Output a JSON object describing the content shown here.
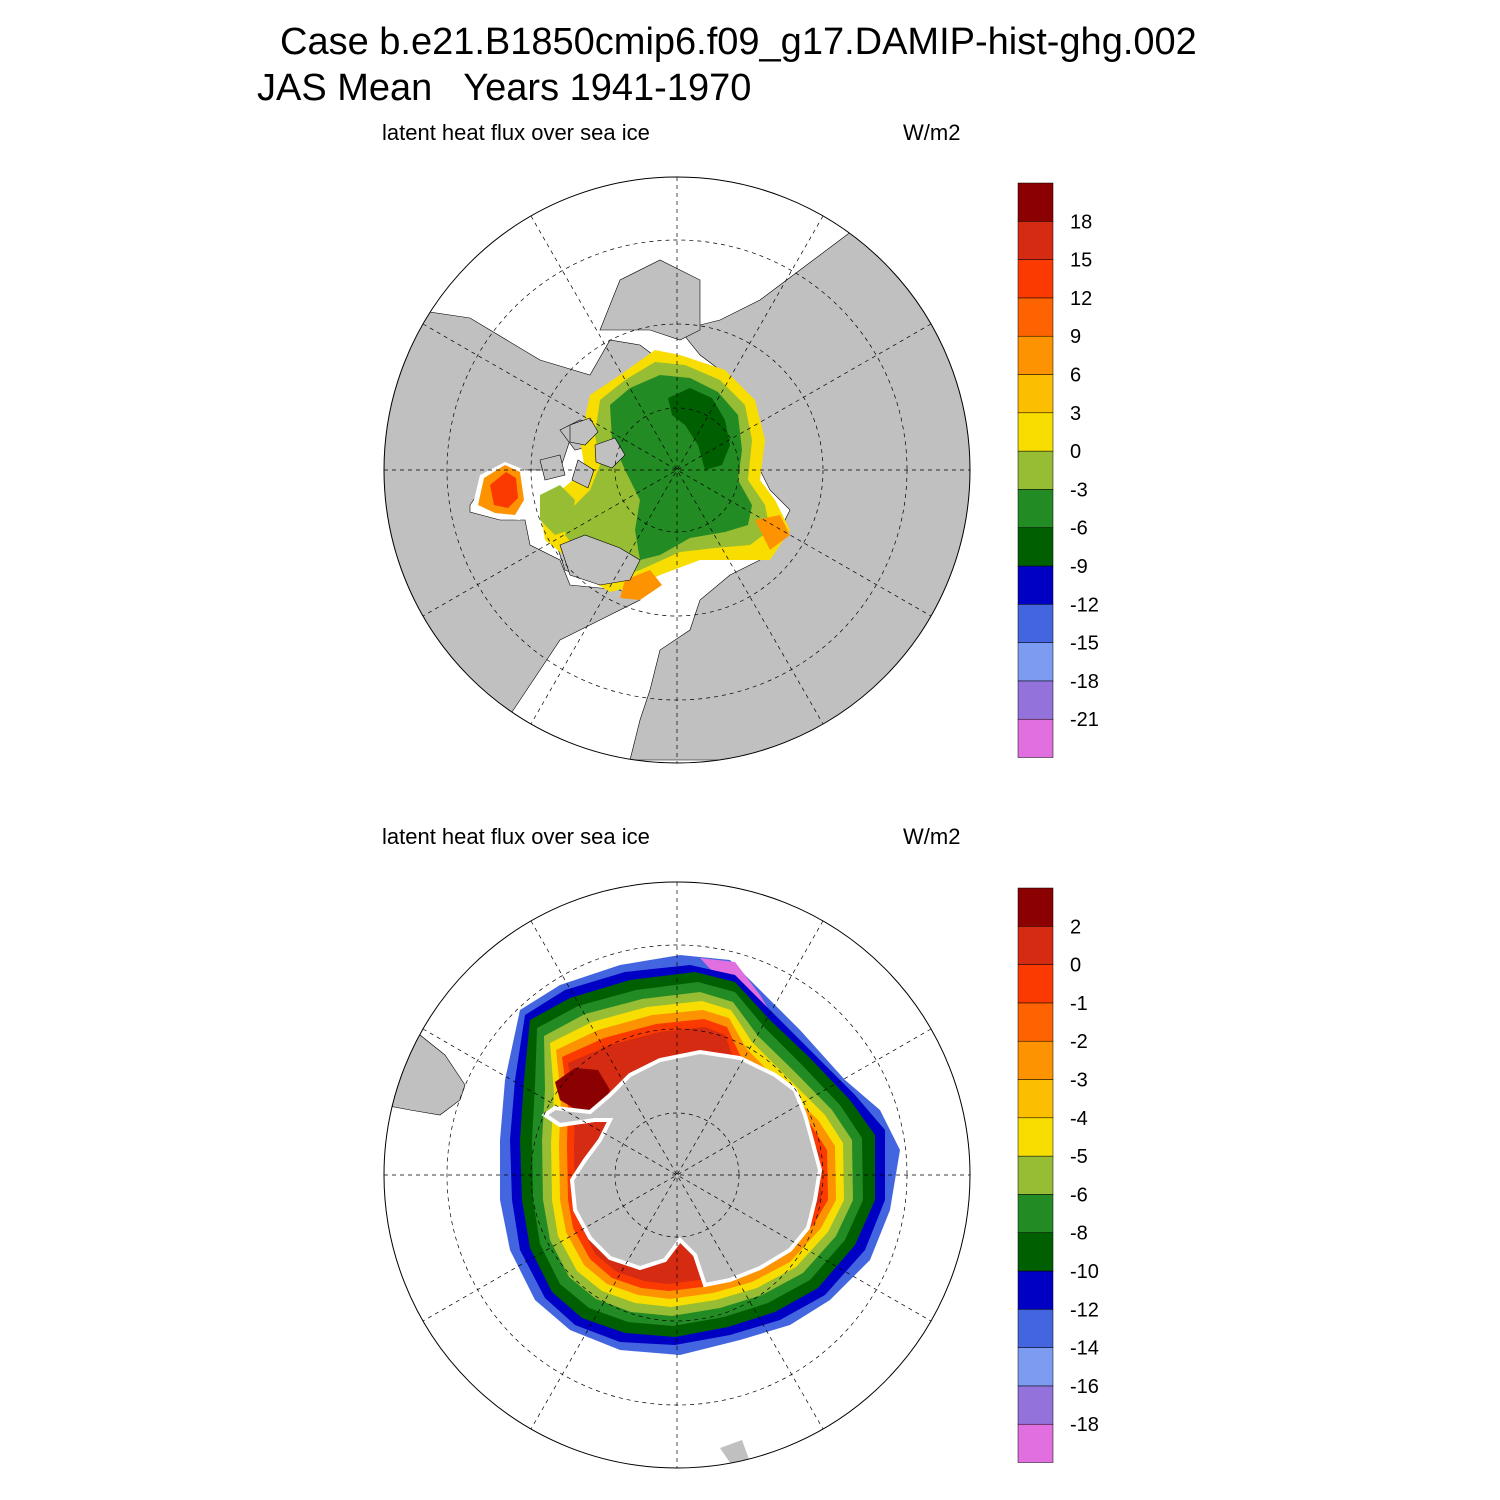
{
  "title_line1": "Case b.e21.B1850cmip6.f09_g17.DAMIP-hist-ghg.002",
  "title_line2": "JAS Mean   Years 1941-1970",
  "colors": {
    "land": "#c0c0c0",
    "ocean": "#ffffff",
    "palette": [
      "#e16fdf",
      "#9373db",
      "#7b9cf0",
      "#4366e0",
      "#0000c4",
      "#005f00",
      "#238b23",
      "#96bd33",
      "#f7de00",
      "#fbbe00",
      "#fd9300",
      "#fd6300",
      "#fa3a00",
      "#d42b12",
      "#8b0000"
    ]
  },
  "panels": [
    {
      "id": "north",
      "left_title": "latent heat flux over sea ice",
      "units": "W/m2",
      "projection": "north-polar-stereographic",
      "colorbar_labels": [
        "-21",
        "-18",
        "-15",
        "-12",
        "-9",
        "-6",
        "-3",
        "0",
        "3",
        "6",
        "9",
        "12",
        "15",
        "18"
      ]
    },
    {
      "id": "south",
      "left_title": "latent heat flux over sea ice",
      "units": "W/m2",
      "projection": "south-polar-stereographic",
      "colorbar_labels": [
        "-18",
        "-16",
        "-14",
        "-12",
        "-10",
        "-8",
        "-6",
        "-5",
        "-4",
        "-3",
        "-2",
        "-1",
        "0",
        "2"
      ]
    }
  ]
}
